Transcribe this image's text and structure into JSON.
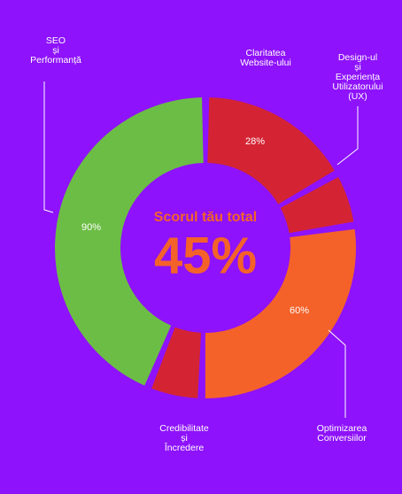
{
  "chart_data": {
    "type": "donut",
    "center_title": "Scorul tău total",
    "center_value": {
      "value": 45,
      "label": "45%"
    },
    "categories": [
      "Claritatea\nWebsite-ului",
      "Design-ul\nși\nExperiența\nUtilizatorului\n(UX)",
      "Optimizarea\nConversiilor",
      "Credibilitate\nși\nÎncredere",
      "SEO\nși\nPerformanță"
    ],
    "values": [
      16,
      5,
      27,
      5,
      43
    ],
    "colors": [
      "#d42434",
      "#d42434",
      "#f4622a",
      "#d42434",
      "#6cbd45"
    ],
    "scores": [
      28,
      null,
      60,
      null,
      90
    ],
    "score_labels": [
      "28%",
      null,
      "60%",
      null,
      "90%"
    ]
  }
}
